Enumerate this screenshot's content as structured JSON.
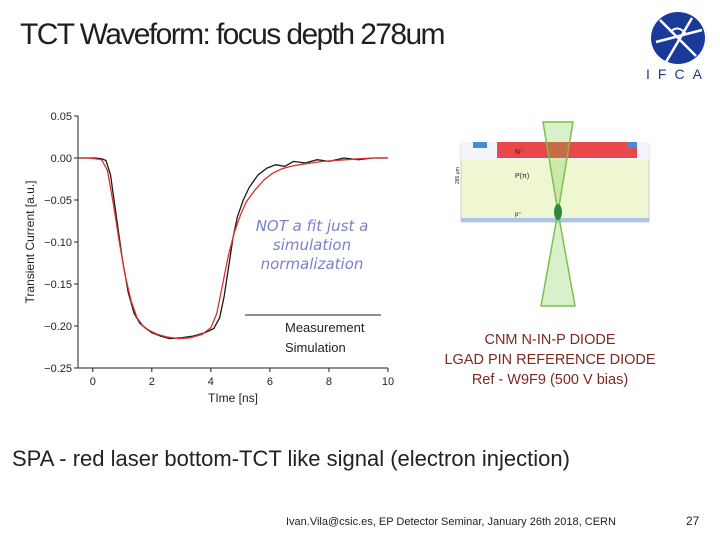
{
  "slide": {
    "title": "TCT Waveform: focus depth 278um",
    "logo_text": "IFCA",
    "diode_caption": [
      "CNM N-IN-P DIODE",
      "LGAD PIN REFERENCE DIODE",
      "Ref - W9F9  (500 V bias)"
    ],
    "subtitle": "SPA - red laser  bottom-TCT like signal (electron injection)",
    "footer": "Ivan.Vila@csic.es, EP Detector Seminar, January 26th 2018, CERN",
    "page_number": "27",
    "diode_labels": {
      "top_region": "N⁺",
      "middle_region": "P(π)",
      "bottom_region": "p⁺",
      "thickness": "285 µm"
    }
  },
  "chart_data": {
    "type": "line",
    "xlabel": "TIme [ns]",
    "ylabel": "Transient Current [a.u.]",
    "xlim": [
      -0.5,
      10
    ],
    "ylim": [
      -0.25,
      0.05
    ],
    "xticks": [
      "0",
      "2",
      "4",
      "6",
      "8",
      "10"
    ],
    "yticks": [
      "0.05",
      "0.00",
      "−0.05",
      "−0.10",
      "−0.15",
      "−0.20",
      "−0.25"
    ],
    "annotation": [
      "NOT a fit just a",
      "simulation",
      "normalization"
    ],
    "legend_placement": "bottom-right",
    "series": [
      {
        "name": "Measurement",
        "color": "#1a1a1a",
        "x": [
          -0.5,
          -0.2,
          0.1,
          0.3,
          0.45,
          0.6,
          0.8,
          1.0,
          1.2,
          1.4,
          1.6,
          1.8,
          2.0,
          2.3,
          2.6,
          3.0,
          3.4,
          3.8,
          4.1,
          4.3,
          4.45,
          4.6,
          4.75,
          4.9,
          5.1,
          5.3,
          5.6,
          5.9,
          6.2,
          6.5,
          6.8,
          7.2,
          7.6,
          8.0,
          8.5,
          9.0,
          9.5,
          10.0
        ],
        "y": [
          0.0,
          0.0,
          0.0,
          -0.001,
          -0.003,
          -0.02,
          -0.07,
          -0.12,
          -0.16,
          -0.185,
          -0.197,
          -0.203,
          -0.208,
          -0.212,
          -0.215,
          -0.214,
          -0.212,
          -0.208,
          -0.203,
          -0.19,
          -0.165,
          -0.13,
          -0.095,
          -0.07,
          -0.05,
          -0.035,
          -0.02,
          -0.012,
          -0.008,
          -0.01,
          -0.004,
          -0.006,
          -0.002,
          -0.004,
          0.0,
          -0.002,
          0.0,
          0.0
        ]
      },
      {
        "name": "Simulation",
        "color": "#d93030",
        "x": [
          -0.5,
          -0.2,
          0.1,
          0.3,
          0.5,
          0.7,
          0.9,
          1.1,
          1.3,
          1.5,
          1.7,
          1.9,
          2.2,
          2.5,
          2.9,
          3.3,
          3.7,
          4.0,
          4.2,
          4.4,
          4.6,
          4.8,
          5.0,
          5.2,
          5.5,
          5.8,
          6.1,
          6.4,
          6.7,
          7.0,
          7.4,
          7.8,
          8.2,
          8.6,
          9.0,
          9.5,
          10.0
        ],
        "y": [
          0.0,
          0.0,
          -0.001,
          -0.002,
          -0.015,
          -0.055,
          -0.1,
          -0.14,
          -0.17,
          -0.19,
          -0.2,
          -0.205,
          -0.21,
          -0.213,
          -0.215,
          -0.214,
          -0.21,
          -0.202,
          -0.185,
          -0.15,
          -0.115,
          -0.088,
          -0.068,
          -0.052,
          -0.038,
          -0.026,
          -0.018,
          -0.013,
          -0.01,
          -0.008,
          -0.006,
          -0.004,
          -0.003,
          -0.002,
          -0.001,
          0.0,
          0.0
        ]
      }
    ]
  }
}
